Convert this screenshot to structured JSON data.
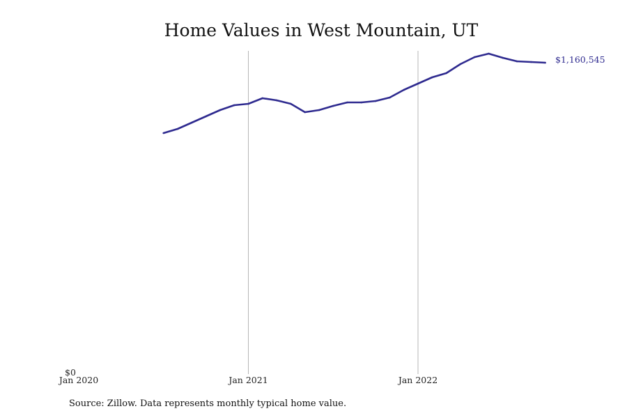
{
  "chart_data": {
    "type": "line",
    "title": "Home Values in West Mountain, UT",
    "xlabel": "",
    "ylabel": "",
    "x_ticks": [
      "Jan 2020",
      "Jan 2021",
      "Jan 2022"
    ],
    "y_ticks": [
      "$0"
    ],
    "ylim": [
      0,
      1160545
    ],
    "grid": "vertical lines at Jan 2021 and Jan 2022",
    "end_label": "$1,160,545",
    "color": "#2e2a8f",
    "series": [
      {
        "name": "Typical home value",
        "x": [
          "2020-07",
          "2020-08",
          "2020-09",
          "2020-10",
          "2020-11",
          "2020-12",
          "2021-01",
          "2021-02",
          "2021-03",
          "2021-04",
          "2021-05",
          "2021-06",
          "2021-07",
          "2021-08",
          "2021-09",
          "2021-10",
          "2021-11",
          "2021-12",
          "2022-01",
          "2022-02",
          "2022-03",
          "2022-04",
          "2022-05",
          "2022-06",
          "2022-07",
          "2022-08",
          "2022-09",
          "2022-10"
        ],
        "values": [
          897150,
          912800,
          936270,
          959740,
          983220,
          1001470,
          1006690,
          1027550,
          1019730,
          1006690,
          975390,
          983220,
          998860,
          1011900,
          1011900,
          1017120,
          1030160,
          1058850,
          1082320,
          1105790,
          1121440,
          1155340,
          1181420,
          1194460,
          1178820,
          1165780,
          1163170,
          1160545
        ]
      }
    ]
  },
  "source": "Source: Zillow. Data represents monthly typical home value."
}
